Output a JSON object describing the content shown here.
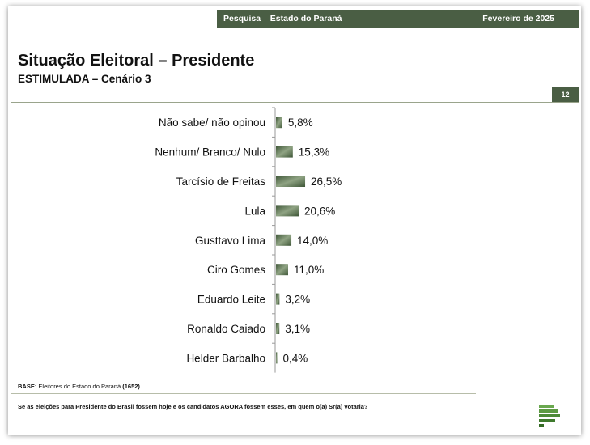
{
  "header": {
    "survey": "Pesquisa – Estado do Paraná",
    "date": "Fevereiro de 2025"
  },
  "title": "Situação Eleitoral – Presidente",
  "subtitle": "ESTIMULADA – Cenário 3",
  "page_number": "12",
  "footer": {
    "base_label": "BASE:",
    "base_text": " Eleitores do Estado do Paraná ",
    "base_count": "(1652)",
    "question": "Se as eleições para Presidente do Brasil fossem hoje e os candidatos AGORA fossem esses, em quem o(a) Sr(a) votaria?"
  },
  "colors": {
    "brand_green": "#4a5e44",
    "bar_dark": "#3e5637",
    "bar_light": "#8fa383"
  },
  "chart_data": {
    "type": "bar",
    "orientation": "horizontal",
    "categories": [
      "Não sabe/ não opinou",
      "Nenhum/ Branco/ Nulo",
      "Tarcísio de Freitas",
      "Lula",
      "Gusttavo Lima",
      "Ciro Gomes",
      "Eduardo Leite",
      "Ronaldo Caiado",
      "Helder Barbalho"
    ],
    "values": [
      5.8,
      15.3,
      26.5,
      20.6,
      14.0,
      11.0,
      3.2,
      3.1,
      0.4
    ],
    "labels": [
      "5,8%",
      "15,3%",
      "26,5%",
      "20,6%",
      "14,0%",
      "11,0%",
      "3,2%",
      "3,1%",
      "0,4%"
    ],
    "xlim": [
      0,
      100
    ],
    "grid": false,
    "legend": false
  }
}
